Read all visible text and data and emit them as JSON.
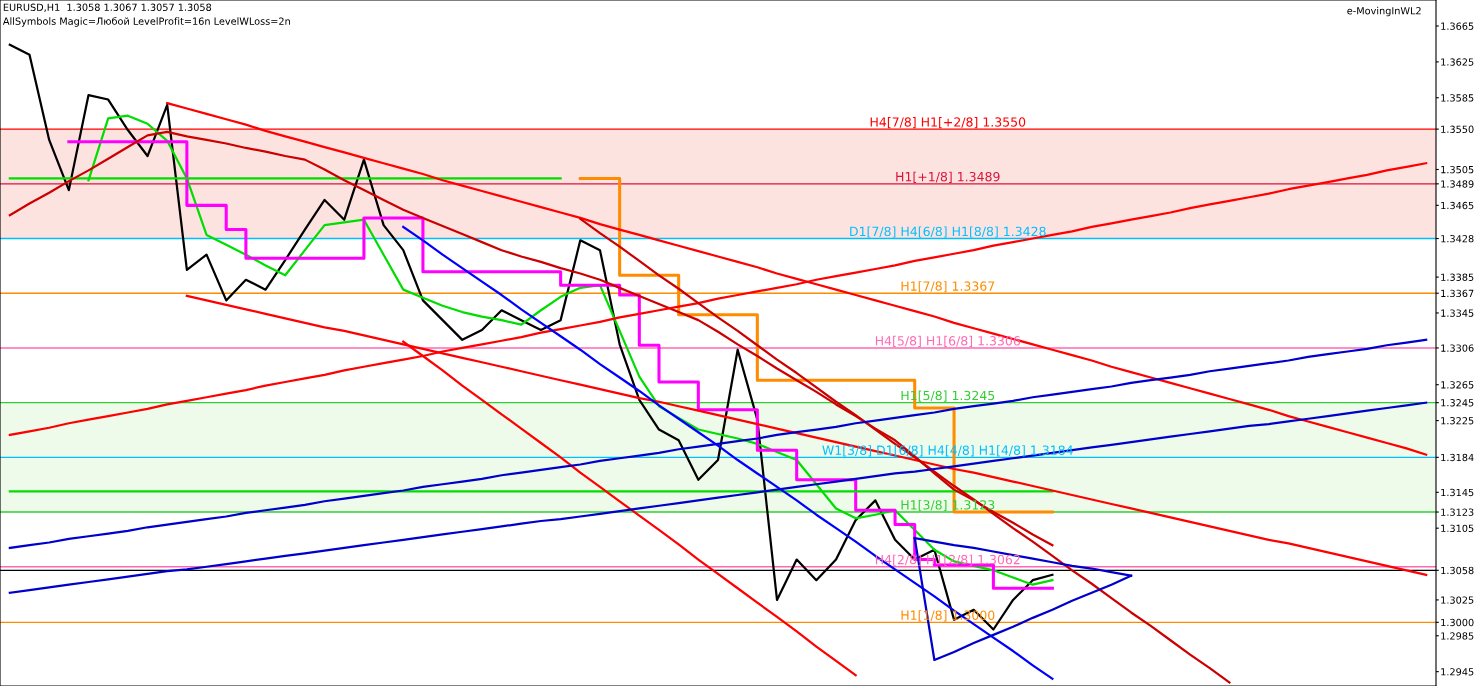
{
  "chart_data": {
    "type": "line",
    "title": "EURUSD,H1  1.3058 1.3067 1.3057 1.3058",
    "subtitle": "AllSymbols Magic=Любой LevelProfit=16n LevelWLoss=2n",
    "annotations": [
      "e-MovingInWL2"
    ],
    "categories": [
      null,
      null,
      null,
      null,
      null,
      null,
      null,
      null,
      null,
      null,
      null,
      null,
      null,
      null,
      null,
      null,
      null,
      null,
      null,
      null,
      null,
      null,
      null,
      null,
      null,
      null,
      null,
      null,
      null,
      null,
      null,
      null,
      null,
      null,
      null,
      null,
      null,
      null,
      null,
      null,
      null,
      null,
      null,
      null,
      null,
      null,
      null,
      null,
      null,
      null,
      null,
      null,
      null,
      null,
      null,
      null,
      null,
      null,
      null,
      null,
      null,
      null,
      null,
      null,
      null,
      null,
      null,
      null,
      null,
      null,
      null,
      null,
      null
    ],
    "ylim": [
      1.2929,
      1.3694
    ],
    "tick_labels": "y",
    "grid": false,
    "legend": false,
    "marker": "none",
    "line_style": "solid",
    "yticks": [
      1.2945,
      1.2985,
      {
        "value": 1.3,
        "label": "1.3000"
      },
      1.3025,
      {
        "value": 1.3058,
        "label": "1.3058"
      },
      1.3105,
      {
        "value": 1.3123,
        "label": "1.3123"
      },
      1.3145,
      {
        "value": 1.3184,
        "label": "1.3184"
      },
      1.3225,
      {
        "value": 1.3245,
        "label": "1.3245"
      },
      1.3265,
      {
        "value": 1.3306,
        "label": "1.3306"
      },
      1.3345,
      {
        "value": 1.3367,
        "label": "1.3367"
      },
      1.3385,
      {
        "value": 1.3428,
        "label": "1.3428"
      },
      1.3465,
      {
        "value": 1.3489,
        "label": "1.3489"
      },
      1.3505,
      {
        "value": 1.355,
        "label": "1.3550"
      },
      1.3585,
      1.3625,
      1.3665
    ],
    "bands": [
      {
        "axis": "y",
        "from": 1.3428,
        "to": 1.355,
        "color": "#fde3df"
      },
      {
        "axis": "y",
        "from": 1.3123,
        "to": 1.3245,
        "color": "#eefbea"
      }
    ],
    "ref_lines": [
      {
        "axis": "y",
        "value": 1.355,
        "label": "H4[7/8] H1[+2/8] 1.3550",
        "color": "#ff0000"
      },
      {
        "axis": "y",
        "value": 1.3489,
        "label": "H1[+1/8] 1.3489",
        "color": "#dc143c"
      },
      {
        "axis": "y",
        "value": 1.3428,
        "label": "D1[7/8] H4[6/8] H1[8/8] 1.3428",
        "color": "#00bfff"
      },
      {
        "axis": "y",
        "value": 1.3367,
        "label": "H1[7/8] 1.3367",
        "color": "#ff8c00"
      },
      {
        "axis": "y",
        "value": 1.3306,
        "label": "H4[5/8] H1[6/8] 1.3306",
        "color": "#ff69b4"
      },
      {
        "axis": "y",
        "value": 1.3245,
        "label": "H1[5/8] 1.3245",
        "color": "#32cd32"
      },
      {
        "axis": "y",
        "value": 1.3184,
        "label": "W1[3/8] D1[6/8] H4[4/8] H1[4/8] 1.3184",
        "color": "#00bfff"
      },
      {
        "axis": "y",
        "value": 1.3123,
        "label": "H1[3/8] 1.3123",
        "color": "#32cd32"
      },
      {
        "axis": "y",
        "value": 1.3062,
        "label": "H4[2/8] H1[2/8] 1.3062",
        "color": "#ff69b4"
      },
      {
        "axis": "y",
        "value": 1.3058,
        "label": null,
        "color": "#000000"
      },
      {
        "axis": "y",
        "value": 1.3,
        "label": "H1[1/8] 1.3000",
        "color": "#ff8c00"
      }
    ],
    "series": [
      {
        "color": "#000000",
        "values": [
          1.3644,
          1.3633,
          1.3538,
          1.3482,
          1.3588,
          1.3583,
          1.3549,
          1.352,
          1.3577,
          1.3393,
          1.341,
          1.3359,
          1.3382,
          1.3371,
          1.3404,
          1.3438,
          1.3471,
          1.3449,
          1.3516,
          1.3443,
          1.3415,
          1.3359,
          1.3337,
          1.3315,
          1.3326,
          1.3348,
          1.3337,
          1.3326,
          1.3337,
          1.3426,
          1.3415,
          1.331,
          1.3248,
          1.3215,
          1.3203,
          1.3159,
          1.3181,
          1.3304,
          1.3226,
          1.3025,
          1.307,
          1.3047,
          1.307,
          1.3114,
          1.3136,
          1.3092,
          1.307,
          1.3081,
          1.3003,
          1.3014,
          1.2992,
          1.3025,
          1.3047,
          1.3053,
          null,
          null,
          null,
          null,
          null,
          null,
          null,
          null,
          null,
          null,
          null,
          null,
          null,
          null,
          null,
          null,
          null,
          null,
          null
        ]
      },
      {
        "type": "line",
        "color": "#00dd00",
        "values": [
          null,
          null,
          null,
          null,
          1.3493,
          1.3562,
          1.3565,
          1.3556,
          1.3537,
          1.3495,
          1.3432,
          1.3421,
          1.341,
          1.3398,
          1.3387,
          1.3415,
          1.3443,
          1.3446,
          1.3449,
          1.341,
          1.3371,
          1.3362,
          1.3353,
          1.3346,
          1.3341,
          1.3337,
          1.3332,
          1.3348,
          1.3363,
          1.3373,
          1.3376,
          1.3325,
          1.3274,
          1.3241,
          1.3228,
          1.3215,
          1.321,
          1.3205,
          1.3199,
          1.319,
          1.3181,
          1.3154,
          1.3127,
          1.3116,
          1.312,
          1.3125,
          1.3103,
          1.3081,
          1.3068,
          1.3063,
          1.3058,
          1.305,
          1.3042,
          1.3047,
          null,
          null,
          null,
          null,
          null,
          null,
          null,
          null,
          null,
          null,
          null,
          null,
          null,
          null,
          null,
          null,
          null,
          null,
          null
        ]
      },
      {
        "type": "step",
        "color": "#ff00ff",
        "values": [
          null,
          null,
          null,
          1.3536,
          1.3536,
          1.3536,
          1.3536,
          1.3536,
          1.3536,
          1.3465,
          1.3465,
          1.3438,
          1.3406,
          1.3406,
          1.3406,
          1.3406,
          1.3406,
          1.3406,
          1.3451,
          1.3451,
          1.3451,
          1.3391,
          1.3391,
          1.3391,
          1.3391,
          1.3391,
          1.3391,
          1.3391,
          1.3376,
          1.3376,
          1.3376,
          1.3365,
          1.3309,
          1.3268,
          1.3268,
          1.3237,
          1.3237,
          1.3237,
          1.3192,
          1.3192,
          1.3159,
          1.3159,
          1.3159,
          1.3125,
          1.3125,
          1.3109,
          1.307,
          1.3064,
          1.3064,
          1.3064,
          1.3038,
          1.3038,
          1.3038,
          1.3038,
          null,
          null,
          null,
          null,
          null,
          null,
          null,
          null,
          null,
          null,
          null,
          null,
          null,
          null,
          null,
          null,
          null,
          null,
          null
        ]
      },
      {
        "type": "step",
        "color": "#ff8c00",
        "values": [
          null,
          null,
          null,
          null,
          null,
          null,
          null,
          null,
          null,
          null,
          null,
          null,
          null,
          null,
          null,
          null,
          null,
          null,
          null,
          null,
          null,
          null,
          null,
          null,
          null,
          null,
          null,
          null,
          null,
          1.3495,
          1.3495,
          1.3387,
          1.3387,
          1.3387,
          1.3343,
          1.3343,
          1.3343,
          1.3343,
          1.327,
          1.327,
          1.327,
          1.327,
          1.327,
          1.327,
          1.327,
          1.327,
          1.3239,
          1.3239,
          1.3123,
          1.3123,
          1.3123,
          1.3123,
          1.3123,
          1.3123,
          null,
          null,
          null,
          null,
          null,
          null,
          null,
          null,
          null,
          null,
          null,
          null,
          null,
          null,
          null,
          null,
          null,
          null,
          null
        ]
      },
      {
        "type": "line",
        "color": "#00dd00",
        "values": [
          1.3495,
          1.3495,
          1.3495,
          1.3495,
          1.3495,
          1.3495,
          1.3495,
          1.3495,
          1.3495,
          1.3495,
          1.3495,
          1.3495,
          1.3495,
          1.3495,
          1.3495,
          1.3495,
          1.3495,
          1.3495,
          1.3495,
          1.3495,
          1.3495,
          1.3495,
          1.3495,
          1.3495,
          1.3495,
          1.3495,
          1.3495,
          1.3495,
          1.3495,
          null,
          null,
          null,
          null,
          null,
          null,
          null,
          null,
          null,
          null,
          null,
          null,
          null,
          null,
          null,
          null,
          null,
          null,
          null,
          null,
          null,
          null,
          null,
          null,
          null,
          null,
          null,
          null,
          null,
          null,
          null,
          null,
          null,
          null,
          null,
          null,
          null,
          null,
          null,
          null,
          null,
          null,
          null,
          null
        ]
      },
      {
        "type": "line",
        "color": "#00dd00",
        "values": [
          1.3146,
          1.3146,
          1.3146,
          1.3146,
          1.3146,
          1.3146,
          1.3146,
          1.3146,
          1.3146,
          1.3146,
          1.3146,
          1.3146,
          1.3146,
          1.3146,
          1.3146,
          1.3146,
          1.3146,
          1.3146,
          1.3146,
          1.3146,
          1.3146,
          1.3146,
          1.3146,
          1.3146,
          1.3146,
          1.3146,
          1.3146,
          1.3146,
          1.3146,
          1.3146,
          1.3146,
          1.3146,
          1.3146,
          1.3146,
          1.3146,
          1.3146,
          1.3146,
          1.3146,
          1.3146,
          1.3146,
          1.3146,
          1.3146,
          1.3146,
          1.3146,
          1.3146,
          1.3146,
          1.3146,
          1.3146,
          1.3146,
          1.3146,
          1.3146,
          1.3146,
          1.3146,
          1.3146,
          null,
          null,
          null,
          null,
          null,
          null,
          null,
          null,
          null,
          null,
          null,
          null,
          null,
          null,
          null,
          null,
          null,
          null,
          null
        ]
      },
      {
        "type": "line",
        "color": "#cc0000",
        "values": [
          1.3454,
          1.3467,
          1.3479,
          1.3492,
          1.3504,
          1.3517,
          1.353,
          1.3543,
          1.3547,
          1.3542,
          1.3538,
          1.3534,
          1.3529,
          1.3525,
          1.352,
          1.3516,
          1.3505,
          1.3493,
          1.3482,
          1.3471,
          1.346,
          1.3451,
          1.3442,
          1.3433,
          1.3424,
          1.3415,
          1.3408,
          1.3402,
          1.3395,
          1.3389,
          1.3382,
          1.3373,
          1.3364,
          1.3355,
          1.3346,
          1.3337,
          1.3324,
          1.331,
          1.3297,
          1.3283,
          1.327,
          1.3257,
          1.3243,
          1.323,
          1.3216,
          1.3203,
          1.3185,
          1.3166,
          1.3148,
          1.3136,
          1.3123,
          1.3111,
          1.3098,
          1.3086,
          null,
          null,
          null,
          null,
          null,
          null,
          null,
          null,
          null,
          null,
          null,
          null,
          null,
          null,
          null,
          null,
          null,
          null,
          null
        ]
      },
      {
        "type": "line",
        "color": "#ff0000",
        "values": [
          1.3209,
          1.3213,
          1.3217,
          1.3222,
          1.3226,
          1.323,
          1.3234,
          1.3238,
          1.3243,
          1.3247,
          1.3251,
          1.3255,
          1.3259,
          1.3264,
          1.3268,
          1.3272,
          1.3276,
          1.3281,
          1.3285,
          1.3289,
          1.3293,
          1.3297,
          1.3302,
          1.3306,
          1.331,
          1.3314,
          1.3318,
          1.3323,
          1.3327,
          1.3331,
          1.3335,
          1.334,
          1.3344,
          1.3348,
          1.3352,
          1.3356,
          1.3361,
          1.3365,
          1.3369,
          1.3373,
          1.3377,
          1.3382,
          1.3386,
          1.339,
          1.3394,
          1.3398,
          1.3403,
          1.3407,
          1.3411,
          1.3415,
          1.342,
          1.3424,
          1.3428,
          1.3432,
          1.3436,
          1.3441,
          1.3445,
          1.3449,
          1.3453,
          1.3457,
          1.3462,
          1.3466,
          1.347,
          1.3474,
          1.3478,
          1.3483,
          1.3487,
          1.3491,
          1.3495,
          1.3499,
          1.3504,
          1.3508,
          1.3512
        ]
      },
      {
        "type": "line",
        "color": "#ff0000",
        "values": [
          null,
          null,
          null,
          null,
          null,
          null,
          null,
          null,
          1.3579,
          1.3573,
          1.3567,
          1.3561,
          1.3555,
          1.3548,
          1.3542,
          1.3536,
          1.353,
          1.3524,
          1.3518,
          1.3512,
          1.3506,
          1.35,
          1.3493,
          1.3487,
          1.3481,
          1.3475,
          1.3469,
          1.3463,
          1.3457,
          1.3451,
          1.3444,
          1.3438,
          1.3432,
          1.3426,
          1.342,
          1.3414,
          1.3408,
          1.3402,
          1.3396,
          1.3389,
          1.3383,
          1.3377,
          1.3371,
          1.3365,
          1.3359,
          1.3353,
          1.3347,
          1.3341,
          1.3334,
          1.3328,
          1.3322,
          1.3316,
          1.331,
          1.3304,
          1.3298,
          1.3292,
          1.3285,
          1.3279,
          1.3273,
          1.3267,
          1.3261,
          1.3255,
          1.3249,
          1.3243,
          1.3237,
          1.323,
          1.3224,
          1.3218,
          1.3212,
          1.3206,
          1.32,
          1.3194,
          1.3187
        ]
      },
      {
        "type": "line",
        "color": "#ff0000",
        "values": [
          null,
          null,
          null,
          null,
          null,
          null,
          null,
          null,
          null,
          1.3364,
          1.3359,
          1.3354,
          1.3349,
          1.3344,
          1.3339,
          1.3334,
          1.3329,
          1.3325,
          1.332,
          1.3315,
          1.331,
          1.3305,
          1.33,
          1.3295,
          1.329,
          1.3285,
          1.328,
          1.3275,
          1.327,
          1.3265,
          1.326,
          1.3255,
          1.325,
          1.3246,
          1.3241,
          1.3236,
          1.3231,
          1.3226,
          1.3221,
          1.3216,
          1.3211,
          1.3206,
          1.3201,
          1.3196,
          1.3191,
          1.3186,
          1.3181,
          1.3176,
          1.3171,
          1.3167,
          1.3162,
          1.3157,
          1.3152,
          1.3147,
          1.3142,
          1.3137,
          1.3132,
          1.3127,
          1.3122,
          1.3117,
          1.3112,
          1.3107,
          1.3102,
          1.3097,
          1.3092,
          1.3088,
          1.3083,
          1.3078,
          1.3073,
          1.3068,
          1.3063,
          1.3058,
          1.3053
        ]
      },
      {
        "type": "line",
        "color": "#ff0000",
        "values": [
          null,
          null,
          null,
          null,
          null,
          null,
          null,
          null,
          null,
          null,
          null,
          null,
          null,
          null,
          null,
          null,
          null,
          null,
          null,
          null,
          1.3313,
          1.3297,
          1.3281,
          1.3264,
          1.3248,
          1.3232,
          1.3216,
          1.32,
          1.3184,
          1.3167,
          1.3151,
          1.3135,
          1.3119,
          1.3103,
          1.3087,
          1.307,
          1.3054,
          1.3038,
          1.3022,
          1.3006,
          1.299,
          1.2973,
          1.2957,
          1.2941,
          null,
          null,
          null,
          null,
          null,
          null,
          null,
          null,
          null,
          null,
          null,
          null,
          null,
          null,
          null,
          null,
          null,
          null,
          null,
          null,
          null,
          null,
          null,
          null,
          null,
          null,
          null,
          null,
          null
        ]
      },
      {
        "type": "line",
        "color": "#cc0000",
        "values": [
          null,
          null,
          null,
          null,
          null,
          null,
          null,
          null,
          null,
          null,
          null,
          null,
          null,
          null,
          null,
          null,
          null,
          null,
          null,
          null,
          null,
          null,
          null,
          null,
          null,
          null,
          null,
          null,
          null,
          1.345,
          1.3434,
          1.3419,
          1.3403,
          1.3387,
          1.3372,
          1.3356,
          1.334,
          1.3325,
          1.3309,
          1.3293,
          1.3278,
          1.3262,
          1.3246,
          1.3231,
          1.3215,
          1.3199,
          1.3184,
          1.3168,
          1.3152,
          1.3137,
          1.3121,
          1.3105,
          1.309,
          1.3074,
          1.3058,
          1.3043,
          1.3027,
          1.3011,
          1.2996,
          1.298,
          1.2964,
          1.2949,
          1.2933,
          null,
          null,
          null,
          null,
          null,
          null,
          null,
          null,
          null,
          null
        ]
      },
      {
        "type": "line",
        "color": "#0000cc",
        "values": [
          1.3083,
          1.3086,
          1.3089,
          1.3093,
          1.3096,
          1.3099,
          1.3102,
          1.3106,
          1.3109,
          1.3112,
          1.3115,
          1.3118,
          1.3122,
          1.3125,
          1.3128,
          1.3131,
          1.3135,
          1.3138,
          1.3141,
          1.3144,
          1.3147,
          1.3151,
          1.3154,
          1.3157,
          1.316,
          1.3164,
          1.3167,
          1.317,
          1.3173,
          1.3176,
          1.318,
          1.3183,
          1.3186,
          1.3189,
          1.3193,
          1.3196,
          1.3199,
          1.3202,
          1.3205,
          1.3209,
          1.3212,
          1.3215,
          1.3218,
          1.3222,
          1.3225,
          1.3228,
          1.3231,
          1.3234,
          1.3238,
          1.3241,
          1.3244,
          1.3247,
          1.3251,
          1.3254,
          1.3257,
          1.326,
          1.3263,
          1.3267,
          1.327,
          1.3273,
          1.3276,
          1.328,
          1.3283,
          1.3286,
          1.3289,
          1.3292,
          1.3296,
          1.3299,
          1.3302,
          1.3305,
          1.3309,
          1.3312,
          1.3315
        ]
      },
      {
        "type": "line",
        "color": "#0000cc",
        "values": [
          1.3033,
          1.3036,
          1.3039,
          1.3042,
          1.3045,
          1.3048,
          1.3051,
          1.3054,
          1.3057,
          1.3059,
          1.3062,
          1.3065,
          1.3068,
          1.3071,
          1.3074,
          1.3077,
          1.308,
          1.3083,
          1.3086,
          1.3089,
          1.3092,
          1.3095,
          1.3098,
          1.3101,
          1.3104,
          1.3107,
          1.311,
          1.3113,
          1.3115,
          1.3118,
          1.3121,
          1.3124,
          1.3127,
          1.313,
          1.3133,
          1.3136,
          1.3139,
          1.3142,
          1.3145,
          1.3148,
          1.3151,
          1.3154,
          1.3157,
          1.316,
          1.3163,
          1.3166,
          1.3168,
          1.3171,
          1.3174,
          1.3177,
          1.318,
          1.3183,
          1.3186,
          1.3189,
          1.3192,
          1.3195,
          1.3198,
          1.3201,
          1.3204,
          1.3207,
          1.321,
          1.3213,
          1.3216,
          1.3219,
          1.3221,
          1.3224,
          1.3227,
          1.323,
          1.3233,
          1.3236,
          1.3239,
          1.3242,
          1.3245
        ]
      },
      {
        "type": "line",
        "color": "#0000ff",
        "values": [
          null,
          null,
          null,
          null,
          null,
          null,
          null,
          null,
          null,
          null,
          null,
          null,
          null,
          null,
          null,
          null,
          null,
          null,
          null,
          null,
          1.3441,
          1.3426,
          1.341,
          1.3395,
          1.338,
          1.3365,
          1.3349,
          1.3334,
          1.3319,
          1.3304,
          1.3288,
          1.3273,
          1.3258,
          1.3242,
          1.3227,
          1.3212,
          1.3197,
          1.3181,
          1.3166,
          1.3151,
          1.3136,
          1.312,
          1.3105,
          1.309,
          1.3074,
          1.3059,
          1.3044,
          1.3029,
          1.3013,
          1.2998,
          1.2983,
          1.2968,
          1.2952,
          1.2937,
          null,
          null,
          null,
          null,
          null,
          null,
          null,
          null,
          null,
          null,
          null,
          null,
          null,
          null,
          null,
          null,
          null,
          null,
          null
        ]
      },
      {
        "type": "line",
        "color": "#0000cc",
        "values": [
          null,
          null,
          null,
          null,
          null,
          null,
          null,
          null,
          null,
          null,
          null,
          null,
          null,
          null,
          null,
          null,
          null,
          null,
          null,
          null,
          null,
          null,
          null,
          null,
          null,
          null,
          null,
          null,
          null,
          null,
          null,
          null,
          null,
          null,
          null,
          null,
          null,
          null,
          null,
          null,
          null,
          null,
          null,
          null,
          null,
          null,
          1.3094,
          1.2958,
          1.2967,
          1.2977,
          1.2986,
          1.2995,
          1.3005,
          1.3014,
          1.3024,
          1.3033,
          1.3042,
          1.3052,
          null,
          null,
          null,
          null,
          null,
          null,
          null,
          null,
          null,
          null,
          null,
          null,
          null,
          null,
          null
        ]
      },
      {
        "type": "line",
        "color": "#0000cc",
        "values": [
          null,
          null,
          null,
          null,
          null,
          null,
          null,
          null,
          null,
          null,
          null,
          null,
          null,
          null,
          null,
          null,
          null,
          null,
          null,
          null,
          null,
          null,
          null,
          null,
          null,
          null,
          null,
          null,
          null,
          null,
          null,
          null,
          null,
          null,
          null,
          null,
          null,
          null,
          null,
          null,
          null,
          null,
          null,
          null,
          null,
          null,
          1.3094,
          1.309,
          1.3086,
          1.3083,
          1.3079,
          1.3075,
          1.3071,
          1.3067,
          1.3063,
          1.306,
          1.3056,
          1.3052,
          null,
          null,
          null,
          null,
          null,
          null,
          null,
          null,
          null,
          null,
          null,
          null,
          null,
          null,
          null
        ]
      }
    ]
  }
}
